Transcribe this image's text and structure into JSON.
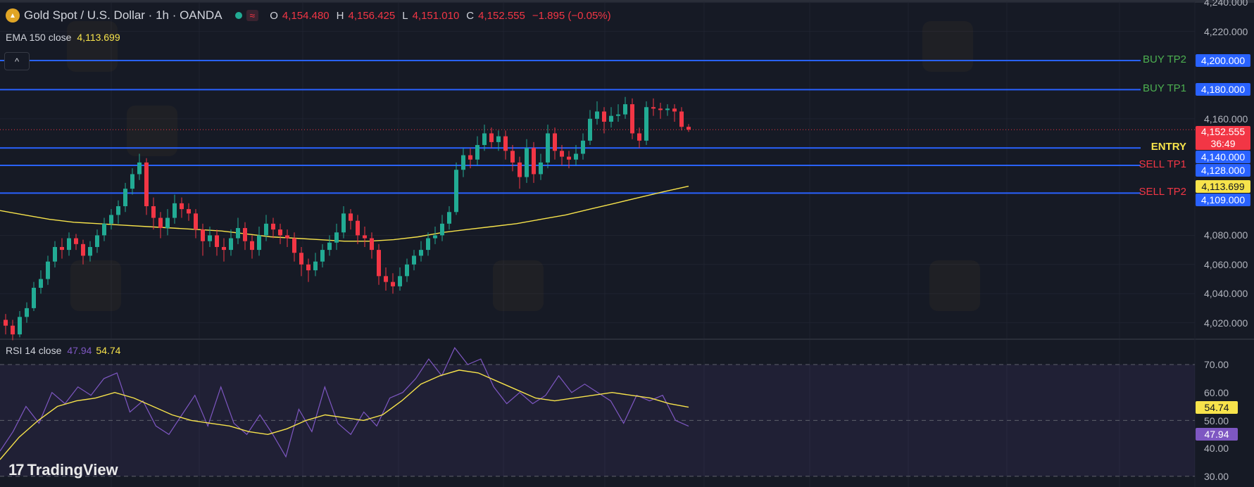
{
  "header": {
    "symbol_icon": "gold-coin-icon",
    "title": "Gold Spot / U.S. Dollar · 1h · OANDA",
    "market_status": "open",
    "o_label": "O",
    "o": "4,154.480",
    "h_label": "H",
    "h": "4,156.425",
    "l_label": "L",
    "l": "4,151.010",
    "c_label": "C",
    "c": "4,152.555",
    "change": "−1.895 (−0.05%)",
    "wave_icon": "≈"
  },
  "ema": {
    "label": "EMA 150 close",
    "value": "4,113.699"
  },
  "collapse_button": "^",
  "rsi_legend": {
    "label": "RSI 14 close",
    "rsi": "47.94",
    "ma": "54.74"
  },
  "branding": {
    "logo": "TradingView",
    "mark": "17"
  },
  "colors": {
    "up": "#22ab94",
    "down": "#f23645",
    "level": "#2962ff",
    "ema": "#f7e34b",
    "rsi": "#7e57c2",
    "rsi_ma": "#f7e34b",
    "buy": "#4caf50",
    "sell": "#f23645",
    "entry": "#f7e34b"
  },
  "chart_data": [
    {
      "type": "candlestick",
      "title": "Gold Spot / U.S. Dollar · 1h · OANDA",
      "ylim": [
        4010,
        4245
      ],
      "y_ticks": [
        "4,240.000",
        "4,220.000",
        "4,160.000",
        "4,080.000",
        "4,060.000",
        "4,040.000",
        "4,020.000"
      ],
      "y_tick_values": [
        4240,
        4220,
        4160,
        4080,
        4060,
        4040,
        4020
      ],
      "candles_ohlc": [
        [
          4022,
          4026,
          4012,
          4018
        ],
        [
          4018,
          4022,
          4008,
          4012
        ],
        [
          4012,
          4028,
          4010,
          4024
        ],
        [
          4024,
          4034,
          4020,
          4030
        ],
        [
          4030,
          4048,
          4028,
          4044
        ],
        [
          4044,
          4056,
          4040,
          4050
        ],
        [
          4050,
          4066,
          4046,
          4062
        ],
        [
          4062,
          4076,
          4058,
          4072
        ],
        [
          4072,
          4078,
          4064,
          4070
        ],
        [
          4070,
          4082,
          4066,
          4078
        ],
        [
          4078,
          4081,
          4070,
          4074
        ],
        [
          4074,
          4077,
          4060,
          4066
        ],
        [
          4066,
          4076,
          4062,
          4072
        ],
        [
          4072,
          4084,
          4068,
          4080
        ],
        [
          4080,
          4092,
          4076,
          4088
        ],
        [
          4088,
          4098,
          4084,
          4094
        ],
        [
          4094,
          4104,
          4088,
          4100
        ],
        [
          4100,
          4116,
          4096,
          4112
        ],
        [
          4112,
          4126,
          4108,
          4122
        ],
        [
          4122,
          4136,
          4118,
          4130
        ],
        [
          4130,
          4133,
          4094,
          4100
        ],
        [
          4100,
          4106,
          4084,
          4092
        ],
        [
          4092,
          4096,
          4078,
          4085
        ],
        [
          4085,
          4098,
          4080,
          4092
        ],
        [
          4092,
          4108,
          4088,
          4102
        ],
        [
          4102,
          4106,
          4092,
          4098
        ],
        [
          4098,
          4102,
          4090,
          4095
        ],
        [
          4095,
          4098,
          4078,
          4084
        ],
        [
          4084,
          4088,
          4066,
          4076
        ],
        [
          4076,
          4086,
          4072,
          4080
        ],
        [
          4080,
          4084,
          4066,
          4072
        ],
        [
          4072,
          4078,
          4062,
          4070
        ],
        [
          4070,
          4084,
          4066,
          4078
        ],
        [
          4078,
          4092,
          4074,
          4085
        ],
        [
          4085,
          4089,
          4070,
          4076
        ],
        [
          4076,
          4080,
          4064,
          4070
        ],
        [
          4070,
          4086,
          4066,
          4080
        ],
        [
          4080,
          4094,
          4076,
          4088
        ],
        [
          4088,
          4092,
          4078,
          4084
        ],
        [
          4084,
          4088,
          4074,
          4080
        ],
        [
          4080,
          4084,
          4072,
          4078
        ],
        [
          4078,
          4082,
          4062,
          4068
        ],
        [
          4068,
          4072,
          4052,
          4060
        ],
        [
          4060,
          4064,
          4048,
          4056
        ],
        [
          4056,
          4068,
          4052,
          4062
        ],
        [
          4062,
          4074,
          4058,
          4070
        ],
        [
          4070,
          4080,
          4066,
          4075
        ],
        [
          4075,
          4088,
          4070,
          4082
        ],
        [
          4082,
          4100,
          4078,
          4095
        ],
        [
          4095,
          4098,
          4084,
          4090
        ],
        [
          4090,
          4094,
          4074,
          4080
        ],
        [
          4080,
          4086,
          4072,
          4078
        ],
        [
          4078,
          4082,
          4064,
          4070
        ],
        [
          4070,
          4074,
          4046,
          4052
        ],
        [
          4052,
          4058,
          4042,
          4048
        ],
        [
          4048,
          4054,
          4040,
          4045
        ],
        [
          4045,
          4058,
          4042,
          4052
        ],
        [
          4052,
          4064,
          4048,
          4060
        ],
        [
          4060,
          4070,
          4056,
          4066
        ],
        [
          4066,
          4076,
          4062,
          4070
        ],
        [
          4070,
          4082,
          4066,
          4078
        ],
        [
          4078,
          4086,
          4074,
          4080
        ],
        [
          4080,
          4094,
          4076,
          4088
        ],
        [
          4088,
          4100,
          4084,
          4096
        ],
        [
          4096,
          4130,
          4094,
          4125
        ],
        [
          4125,
          4140,
          4120,
          4135
        ],
        [
          4135,
          4140,
          4126,
          4132
        ],
        [
          4132,
          4148,
          4128,
          4142
        ],
        [
          4142,
          4156,
          4138,
          4150
        ],
        [
          4150,
          4154,
          4140,
          4144
        ],
        [
          4144,
          4152,
          4138,
          4148
        ],
        [
          4148,
          4152,
          4132,
          4138
        ],
        [
          4138,
          4142,
          4124,
          4130
        ],
        [
          4130,
          4134,
          4112,
          4120
        ],
        [
          4120,
          4146,
          4116,
          4140
        ],
        [
          4140,
          4144,
          4116,
          4122
        ],
        [
          4122,
          4136,
          4118,
          4130
        ],
        [
          4130,
          4156,
          4126,
          4150
        ],
        [
          4150,
          4154,
          4132,
          4138
        ],
        [
          4138,
          4142,
          4128,
          4134
        ],
        [
          4134,
          4138,
          4126,
          4132
        ],
        [
          4132,
          4142,
          4128,
          4136
        ],
        [
          4136,
          4150,
          4132,
          4145
        ],
        [
          4145,
          4166,
          4142,
          4160
        ],
        [
          4160,
          4172,
          4156,
          4165
        ],
        [
          4165,
          4168,
          4150,
          4158
        ],
        [
          4158,
          4168,
          4154,
          4162
        ],
        [
          4162,
          4170,
          4158,
          4163
        ],
        [
          4163,
          4175,
          4160,
          4170
        ],
        [
          4170,
          4174,
          4146,
          4150
        ],
        [
          4150,
          4154,
          4140,
          4145
        ],
        [
          4145,
          4172,
          4142,
          4168
        ],
        [
          4168,
          4174,
          4162,
          4167
        ],
        [
          4167,
          4171,
          4160,
          4166
        ],
        [
          4166,
          4170,
          4162,
          4167
        ],
        [
          4167,
          4170,
          4158,
          4165
        ],
        [
          4165,
          4168,
          4152,
          4154.48
        ],
        [
          4154.48,
          4156.425,
          4151.01,
          4152.555
        ]
      ],
      "ema_series": {
        "name": "EMA 150 close",
        "values": [
          4097,
          4094,
          4091,
          4089,
          4088,
          4087,
          4086,
          4085,
          4084,
          4083,
          4081,
          4079,
          4078,
          4077,
          4076,
          4076,
          4077,
          4079,
          4082,
          4084,
          4086,
          4088,
          4091,
          4094,
          4098,
          4102,
          4106,
          4110,
          4113.699
        ]
      },
      "levels": [
        {
          "label": "BUY TP2",
          "value": 4200,
          "price": "4,200.000",
          "kind": "buy"
        },
        {
          "label": "BUY TP1",
          "value": 4180,
          "price": "4,180.000",
          "kind": "buy"
        },
        {
          "label": "ENTRY",
          "value": 4140,
          "price": "4,140.000",
          "kind": "entry"
        },
        {
          "label": "SELL TP1",
          "value": 4128,
          "price": "4,128.000",
          "kind": "sell"
        },
        {
          "label": "SELL TP2",
          "value": 4109,
          "price": "4,109.000",
          "kind": "sell"
        }
      ],
      "last_price": {
        "value": 4152.555,
        "price": "4,152.555",
        "countdown": "36:49"
      },
      "ema_badge": "4,113.699"
    },
    {
      "type": "line",
      "title": "RSI 14 close",
      "ylim": [
        25,
        80
      ],
      "y_ticks": [
        "70.00",
        "60.00",
        "50.00",
        "40.00",
        "30.00"
      ],
      "y_tick_values": [
        70,
        60,
        50,
        40,
        30
      ],
      "bands": [
        70,
        50,
        30
      ],
      "series": [
        {
          "name": "RSI",
          "values": [
            39,
            46,
            55,
            49,
            60,
            56,
            62,
            59,
            65,
            67,
            53,
            57,
            48,
            45,
            52,
            59,
            48,
            62,
            49,
            45,
            52,
            45,
            37,
            54,
            46,
            62,
            49,
            45,
            53,
            48,
            58,
            60,
            65,
            72,
            66,
            76,
            70,
            72,
            62,
            56,
            60,
            56,
            59,
            66,
            60,
            63,
            60,
            57,
            49,
            59,
            57,
            59,
            50,
            47.94
          ],
          "badge": "47.94"
        },
        {
          "name": "MA",
          "values": [
            36,
            44,
            50,
            55,
            57,
            58,
            60,
            58,
            55,
            52,
            50,
            49,
            48,
            46,
            45,
            47,
            50,
            52,
            51,
            50,
            52,
            57,
            63,
            66,
            68,
            67,
            64,
            61,
            58,
            57,
            58,
            59,
            60,
            59,
            58,
            56,
            54.74
          ],
          "badge": "54.74"
        }
      ]
    }
  ]
}
